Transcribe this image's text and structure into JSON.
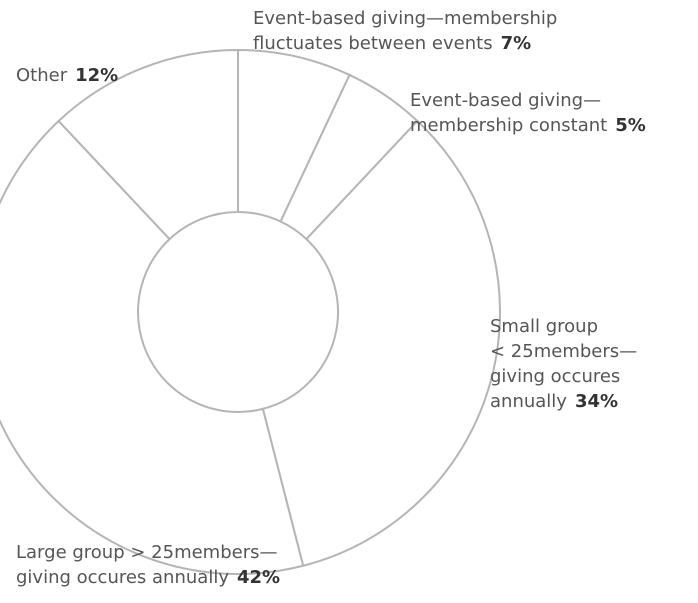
{
  "chart_data": {
    "type": "donut",
    "categories": [
      "Event-based giving—membership\nfluctuates between events",
      "Event-based giving—\nmembership constant",
      "Small group\n< 25members—\ngiving occures\nannually",
      "Large group > 25members—\ngiving occures annually",
      "Other"
    ],
    "values": [
      7,
      5,
      34,
      42,
      12
    ],
    "value_labels": [
      "7%",
      "5%",
      "34%",
      "42%",
      "12%"
    ],
    "color": "#ffffff",
    "edge_color": "#b5b5b5"
  }
}
